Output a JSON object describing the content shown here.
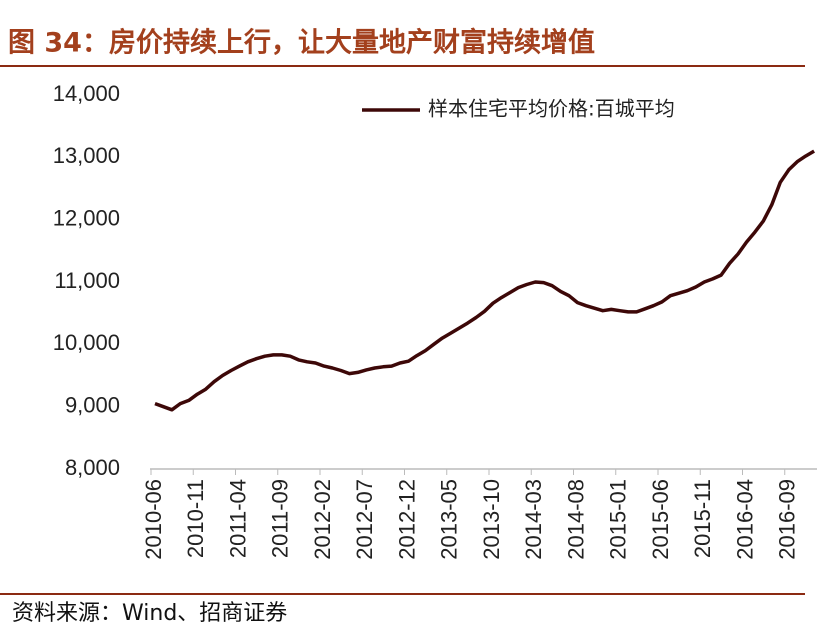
{
  "chart_data": {
    "type": "line",
    "title": "图 34：房价持续上行，让大量地产财富持续增值",
    "source": "资料来源：Wind、招商证券",
    "legend": "upper right",
    "categories": [
      "2010-06",
      null,
      null,
      null,
      null,
      "2010-11",
      null,
      null,
      null,
      null,
      "2011-04",
      null,
      null,
      null,
      null,
      "2011-09",
      null,
      null,
      null,
      null,
      "2012-02",
      null,
      null,
      null,
      null,
      "2012-07",
      null,
      null,
      null,
      null,
      "2012-12",
      null,
      null,
      null,
      null,
      "2013-05",
      null,
      null,
      null,
      null,
      "2013-10",
      null,
      null,
      null,
      null,
      "2014-03",
      null,
      null,
      null,
      null,
      "2014-08",
      null,
      null,
      null,
      null,
      "2015-01",
      null,
      null,
      null,
      null,
      "2015-06",
      null,
      null,
      null,
      null,
      "2015-11",
      null,
      null,
      null,
      null,
      "2016-04",
      null,
      null,
      null,
      null,
      "2016-09",
      null,
      null,
      null
    ],
    "series": [
      {
        "name": "样本住宅平均价格:百城平均",
        "color": "#3d0808",
        "values": [
          9050,
          9000,
          8950,
          9050,
          9100,
          9200,
          9280,
          9400,
          9500,
          9580,
          9650,
          9720,
          9770,
          9810,
          9830,
          9830,
          9810,
          9750,
          9720,
          9700,
          9650,
          9620,
          9580,
          9530,
          9550,
          9590,
          9620,
          9640,
          9650,
          9700,
          9730,
          9820,
          9900,
          10000,
          10100,
          10180,
          10260,
          10340,
          10430,
          10530,
          10660,
          10750,
          10830,
          10910,
          10960,
          11000,
          10990,
          10940,
          10850,
          10780,
          10670,
          10620,
          10580,
          10540,
          10560,
          10540,
          10520,
          10520,
          10570,
          10620,
          10680,
          10780,
          10820,
          10860,
          10920,
          11000,
          11050,
          11110,
          11300,
          11450,
          11640,
          11800,
          11980,
          12240,
          12600,
          12800,
          12930,
          13020,
          13100
        ]
      }
    ],
    "ylim": [
      8000,
      14000
    ],
    "yticks": [
      {
        "value": 8000,
        "label": "8,000"
      },
      {
        "value": 9000,
        "label": "9,000"
      },
      {
        "value": 10000,
        "label": "10,000"
      },
      {
        "value": 11000,
        "label": "11,000"
      },
      {
        "value": 12000,
        "label": "12,000"
      },
      {
        "value": 13000,
        "label": "13,000"
      },
      {
        "value": 14000,
        "label": "14,000"
      }
    ],
    "grid": false
  }
}
